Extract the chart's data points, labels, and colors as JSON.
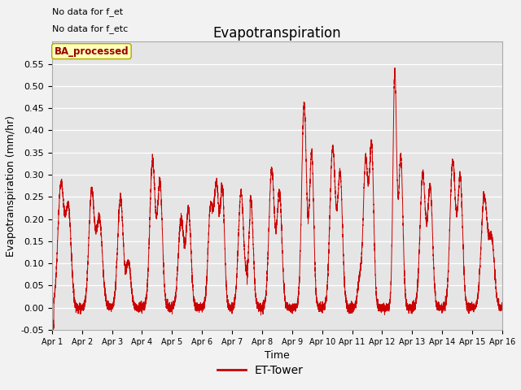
{
  "title": "Evapotranspiration",
  "ylabel": "Evapotranspiration (mm/hr)",
  "xlabel": "Time",
  "legend_label": "ET-Tower",
  "legend_label2": "BA_processed",
  "annotation1": "No data for f_et",
  "annotation2": "No data for f_etc",
  "ylim": [
    -0.05,
    0.6
  ],
  "yticks": [
    -0.05,
    0.0,
    0.05,
    0.1,
    0.15,
    0.2,
    0.25,
    0.3,
    0.35,
    0.4,
    0.45,
    0.5,
    0.55
  ],
  "xtick_labels": [
    "Apr 1",
    "Apr 2",
    "Apr 3",
    "Apr 4",
    "Apr 5",
    "Apr 6",
    "Apr 7",
    "Apr 8",
    "Apr 9",
    "Apr 10",
    "Apr 11",
    "Apr 12",
    "Apr 13",
    "Apr 14",
    "Apr 15",
    "Apr 16"
  ],
  "line_color": "#cc0000",
  "bg_color": "#e5e5e5",
  "grid_color": "#ffffff",
  "fig_bg_color": "#f2f2f2",
  "ba_box_facecolor": "#ffffbb",
  "ba_box_edgecolor": "#aaaa00",
  "ba_text_color": "#990000",
  "title_fontsize": 12,
  "axis_label_fontsize": 9,
  "tick_fontsize": 8,
  "legend_fontsize": 10,
  "days": 15
}
